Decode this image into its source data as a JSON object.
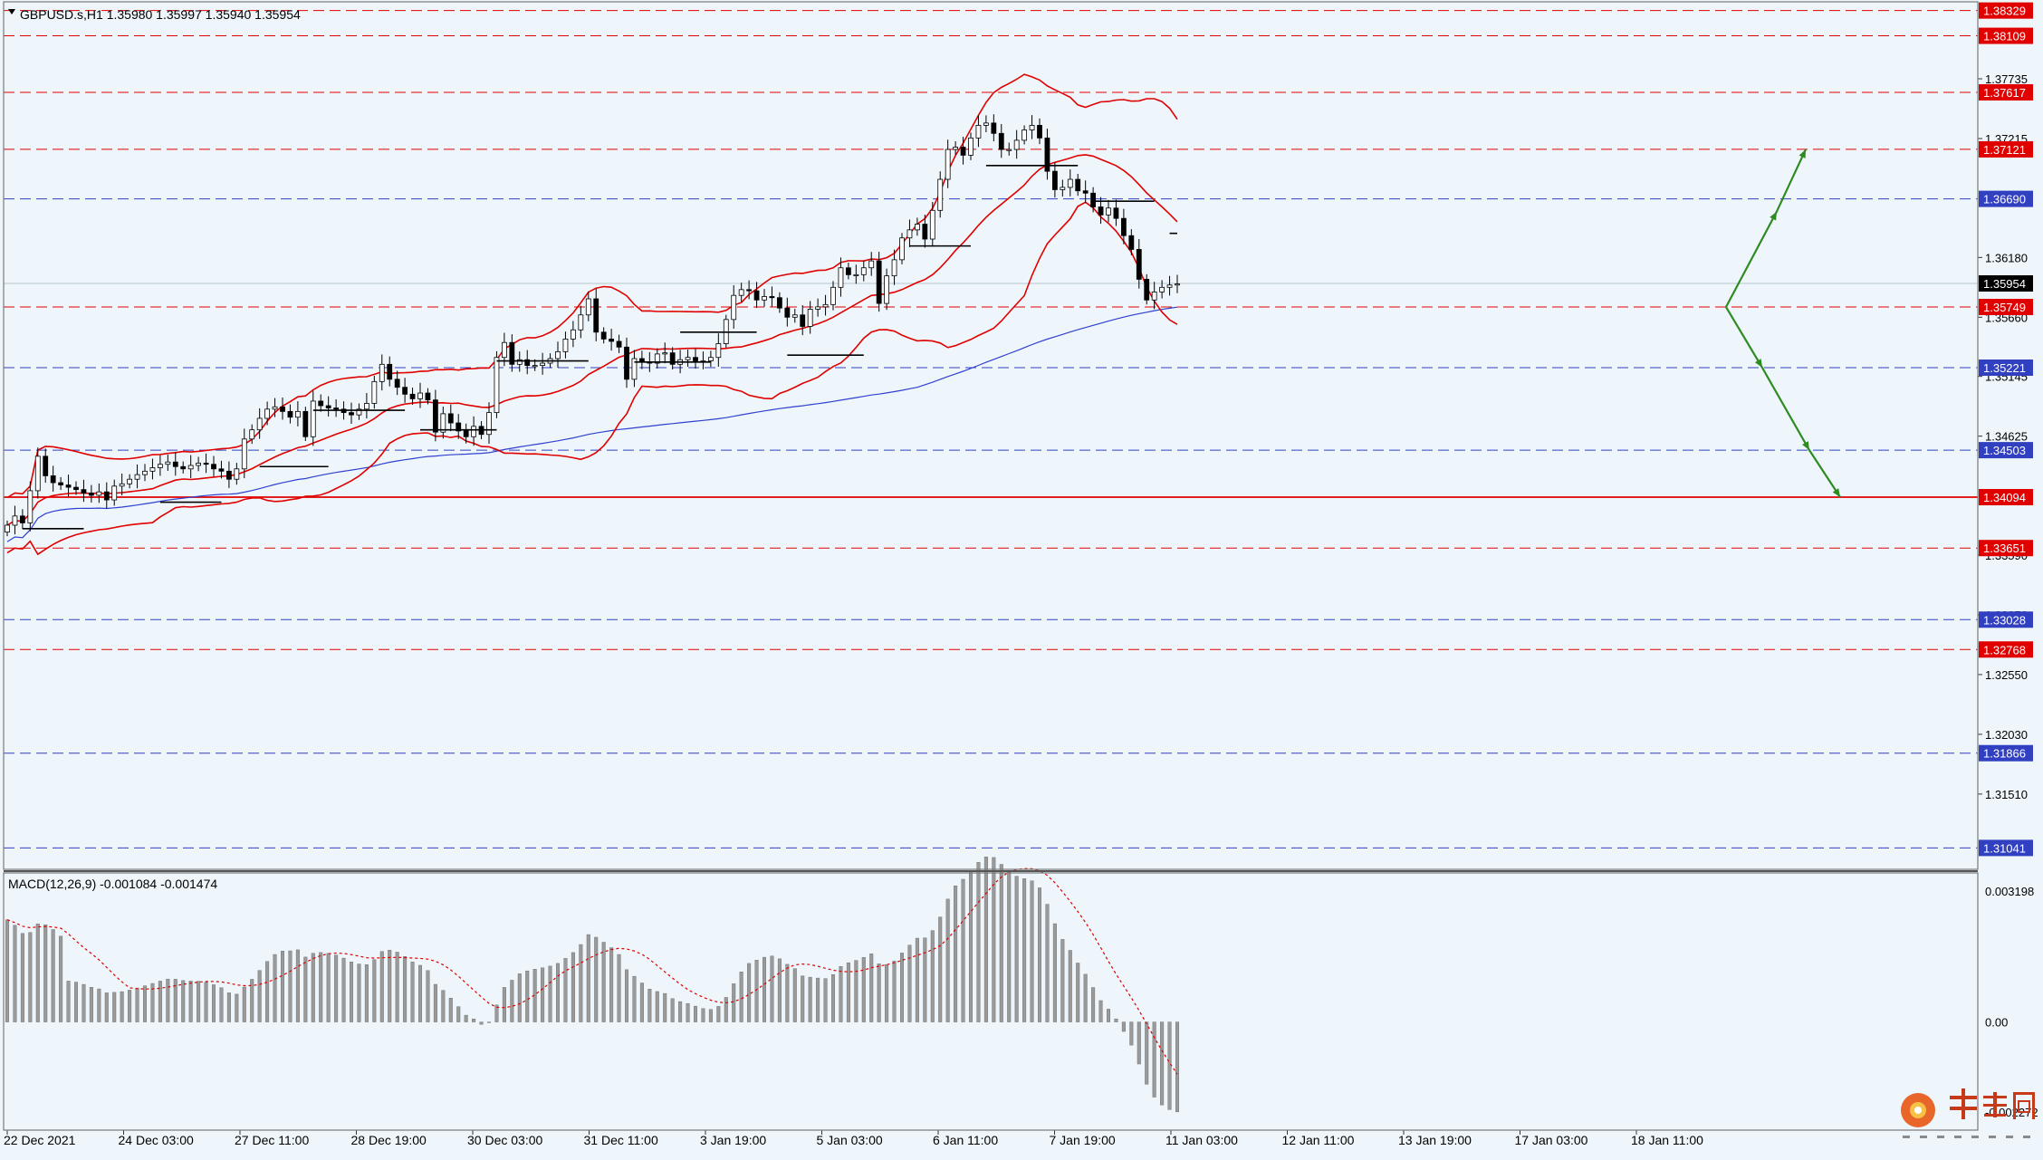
{
  "price_panel": {
    "symbol_info": "GBPUSD.s,H1  1.35980 1.35997 1.35940 1.35954",
    "menu_icon": "triangle-down-icon"
  },
  "macd_panel": {
    "label": "MACD(12,26,9) -0.001084 -0.001474",
    "axis_labels": [
      "0.003198",
      "0.00",
      "-0.002272"
    ]
  },
  "x_axis": {
    "labels": [
      "22 Dec 2021",
      "24 Dec 03:00",
      "27 Dec 11:00",
      "28 Dec 19:00",
      "30 Dec 03:00",
      "31 Dec 11:00",
      "3 Jan 19:00",
      "5 Jan 03:00",
      "6 Jan 11:00",
      "7 Jan 19:00",
      "11 Jan 03:00",
      "12 Jan 11:00",
      "13 Jan 19:00",
      "17 Jan 03:00",
      "18 Jan 11:00"
    ]
  },
  "watermark": {
    "logo_text": "中金网",
    "sub_text": "中 文 财 经 新 媒 体",
    "icon": "cngold-logo-icon"
  },
  "colors": {
    "background": "#eef6fb",
    "bollinger": "#e00000",
    "ma_line": "#3040d0",
    "red_level": "#e00000",
    "blue_level": "#3040c0",
    "arrow": "#2e8b22",
    "candle": "#000000",
    "current_price_tag": "#000000"
  },
  "chart_data": {
    "type": "candlestick",
    "symbol": "GBPUSD.s",
    "timeframe": "H1",
    "ohlc_current": {
      "open": 1.3598,
      "high": 1.35997,
      "low": 1.3594,
      "close": 1.35954
    },
    "ylim": [
      1.30855,
      1.38405
    ],
    "price_ticks": [
      1.37735,
      1.37215,
      1.3618,
      1.3566,
      1.35145,
      1.34625,
      1.3359,
      1.3307,
      1.3255,
      1.3203,
      1.3151
    ],
    "current_price": 1.35954,
    "levels": [
      {
        "price": 1.38329,
        "color": "red",
        "style": "dashed"
      },
      {
        "price": 1.38109,
        "color": "red",
        "style": "dashed"
      },
      {
        "price": 1.37617,
        "color": "red",
        "style": "dashed"
      },
      {
        "price": 1.37121,
        "color": "red",
        "style": "dashed"
      },
      {
        "price": 1.3669,
        "color": "blue",
        "style": "dashed"
      },
      {
        "price": 1.35749,
        "color": "red",
        "style": "dashed"
      },
      {
        "price": 1.35221,
        "color": "blue",
        "style": "dashed"
      },
      {
        "price": 1.34503,
        "color": "blue",
        "style": "dashed"
      },
      {
        "price": 1.34094,
        "color": "red",
        "style": "solid"
      },
      {
        "price": 1.33651,
        "color": "red",
        "style": "dashed"
      },
      {
        "price": 1.33028,
        "color": "blue",
        "style": "dashed"
      },
      {
        "price": 1.32768,
        "color": "red",
        "style": "dashed"
      },
      {
        "price": 1.31866,
        "color": "blue",
        "style": "dashed"
      },
      {
        "price": 1.31041,
        "color": "blue",
        "style": "dashed"
      }
    ],
    "closes": [
      1.3385,
      1.3393,
      1.3387,
      1.3415,
      1.3445,
      1.3428,
      1.3422,
      1.342,
      1.3418,
      1.3416,
      1.3413,
      1.3411,
      1.3414,
      1.3407,
      1.3419,
      1.3421,
      1.3425,
      1.3429,
      1.3432,
      1.3435,
      1.3438,
      1.344,
      1.3436,
      1.3434,
      1.3437,
      1.3439,
      1.3438,
      1.3434,
      1.3432,
      1.3425,
      1.3434,
      1.346,
      1.3468,
      1.3478,
      1.3486,
      1.3488,
      1.3484,
      1.3479,
      1.3484,
      1.3462,
      1.3493,
      1.3489,
      1.3487,
      1.3486,
      1.3483,
      1.3481,
      1.3486,
      1.3491,
      1.351,
      1.3525,
      1.3512,
      1.3505,
      1.3499,
      1.3495,
      1.35,
      1.3494,
      1.3466,
      1.3482,
      1.3474,
      1.3467,
      1.3462,
      1.3471,
      1.3464,
      1.3483,
      1.3531,
      1.3544,
      1.3525,
      1.3529,
      1.3524,
      1.3524,
      1.3526,
      1.353,
      1.3536,
      1.3547,
      1.3555,
      1.3568,
      1.3582,
      1.3553,
      1.3547,
      1.3545,
      1.354,
      1.3512,
      1.353,
      1.3527,
      1.3526,
      1.3534,
      1.3535,
      1.3525,
      1.3529,
      1.3531,
      1.3528,
      1.3528,
      1.3531,
      1.3543,
      1.3564,
      1.3585,
      1.359,
      1.3589,
      1.3581,
      1.3584,
      1.3583,
      1.3574,
      1.3566,
      1.3568,
      1.3558,
      1.3573,
      1.3575,
      1.3577,
      1.3592,
      1.3609,
      1.3603,
      1.3603,
      1.3609,
      1.3615,
      1.3578,
      1.3602,
      1.3616,
      1.3635,
      1.3642,
      1.3647,
      1.3634,
      1.3659,
      1.3686,
      1.3712,
      1.3714,
      1.3707,
      1.3722,
      1.3733,
      1.3735,
      1.3726,
      1.3712,
      1.3712,
      1.372,
      1.3729,
      1.3733,
      1.3722,
      1.3693,
      1.3677,
      1.3679,
      1.3686,
      1.3676,
      1.3674,
      1.3662,
      1.3655,
      1.3661,
      1.3652,
      1.3637,
      1.3625,
      1.3599,
      1.3581,
      1.3588,
      1.3592,
      1.3594,
      1.3595
    ]
  }
}
